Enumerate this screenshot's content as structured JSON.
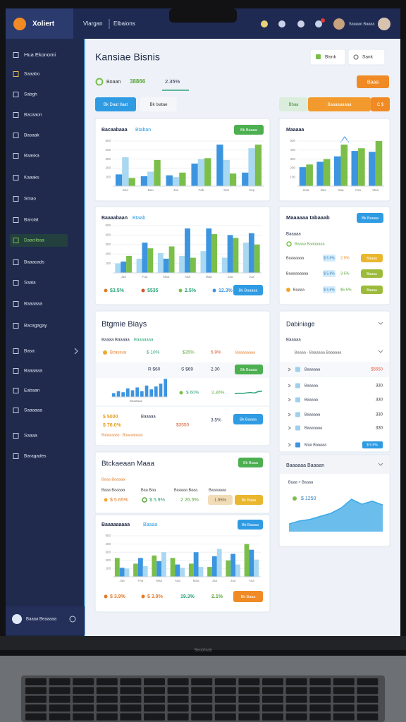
{
  "topbar": {
    "brand": "Xoliert",
    "nav": [
      "Vlargan",
      "Elbaions"
    ],
    "user": "Saaaao Baaaa"
  },
  "sidebar": {
    "items": [
      "Hua Ekonomi",
      "Saaabo",
      "Sabgh",
      "Bacaaon",
      "Basaak",
      "Baaska",
      "Kaaaks",
      "Smao",
      "Barolat",
      "Daaciibaa",
      "Baaacads",
      "Saaia",
      "Baaaaaa",
      "Bacagagay",
      "Basa",
      "Baaaaaa",
      "Eabaan",
      "Saaaaaa",
      "Saaaa",
      "Baragades"
    ],
    "footer": "Baaaa Beaaaaa"
  },
  "header": {
    "title": "Kansiae Bisnis",
    "buttons": [
      "Bisnk",
      "Sank"
    ],
    "stat_label": "Boaan",
    "stat_value": "38866",
    "stat_change": "2.35%",
    "action": "Baaa"
  },
  "tabs": {
    "left": [
      "Bk Daat Ilaat",
      "Bk Ixatae"
    ],
    "right": [
      "Bbaa",
      "Baaaaaaaaa",
      "C $"
    ]
  },
  "revenue": {
    "title": "Bacaabaaa",
    "subtitle": "Btaban",
    "badge": "Bk Baaaa",
    "chart": {
      "type": "bar",
      "categories": [
        "Dao",
        "Bao",
        "Jan",
        "Fab",
        "Mar",
        "Sep"
      ],
      "ylim": [
        0,
        500
      ],
      "yticks": [
        100,
        200,
        300,
        400,
        500
      ],
      "series": [
        {
          "color": "#3d95e0",
          "values": [
            130,
            110,
            120,
            250,
            460,
            150
          ]
        },
        {
          "color": "#a8d8f2",
          "values": [
            320,
            160,
            100,
            300,
            290,
            420
          ]
        },
        {
          "color": "#7bbf4a",
          "values": [
            90,
            290,
            150,
            310,
            140,
            460
          ]
        }
      ]
    }
  },
  "market": {
    "title": "Maaaaa",
    "chart": {
      "type": "bar",
      "categories": [
        "Daa",
        "Bao",
        "Saa",
        "Faa",
        "Maa"
      ],
      "ylim": [
        0,
        500
      ],
      "yticks": [
        100,
        200,
        300,
        400,
        500
      ],
      "series": [
        {
          "color": "#3d95e0",
          "values": [
            210,
            270,
            330,
            390,
            380
          ]
        },
        {
          "color": "#7bbf4a",
          "values": [
            240,
            300,
            460,
            420,
            500
          ]
        }
      ]
    }
  },
  "growth": {
    "title": "Baaaabaan",
    "subtitle": "Btaab",
    "stats": [
      "$3.5%",
      "$535",
      "2.5%",
      "12.3%"
    ],
    "button": "Bk Baaaaa",
    "chart": {
      "type": "bar",
      "categories": [
        "Jaa",
        "Faa",
        "Maa",
        "Aaa",
        "Maa",
        "Jaa",
        "Jua"
      ],
      "ylim": [
        0,
        500
      ],
      "yticks": [
        100,
        200,
        300,
        400,
        500
      ],
      "series": [
        {
          "color": "#a8d8f2",
          "values": [
            100,
            150,
            210,
            180,
            230,
            160,
            320
          ]
        },
        {
          "color": "#3d95e0",
          "values": [
            120,
            320,
            150,
            470,
            470,
            400,
            420
          ]
        },
        {
          "color": "#7bbf4a",
          "values": [
            180,
            260,
            280,
            160,
            410,
            370,
            300
          ]
        }
      ]
    }
  },
  "macro": {
    "title": "Maaaaaa tabaaab",
    "badge": "Bk Baaaa",
    "label": "Baaaaa",
    "sublabel": "Baaaa Baaaaaaa",
    "rows": [
      [
        "Baaaaaaa",
        "$ 5.9%",
        "2.5%",
        "Baaaa"
      ],
      [
        "Baaaaaaaaa",
        "$ 5.9%",
        "3.5%",
        "Baaaa"
      ],
      [
        "Baaaa",
        "$ 5.5%",
        "$5.5%",
        "Baaaa"
      ]
    ]
  },
  "strategy": {
    "title": "Btgmie Biays",
    "head": [
      "Baaaa Baaaaa",
      "Baaaaaaa"
    ],
    "row1": [
      "Bcassua",
      "$ 10%",
      "$35%",
      "5.9%",
      "Baaaaaaaa"
    ],
    "row2": [
      "R $60",
      "S $69",
      "2.30",
      "Bk Baaaa"
    ],
    "row3": [
      "$ 60%",
      "2.30%"
    ],
    "row4": [
      "$ 5000",
      "$ 76.0%",
      "Baaaaa",
      "$3550",
      "3.5%",
      "Bk Baaaa"
    ],
    "caption": "Baaaaaa",
    "footer": "Baaaaaaaa · Baaaaaaaaa",
    "bars": {
      "type": "bar",
      "ylim": [
        0,
        100
      ],
      "color": "#3d95e0",
      "values": [
        20,
        30,
        25,
        45,
        35,
        50,
        30,
        60,
        40,
        55,
        70,
        95
      ]
    },
    "spark": {
      "type": "line",
      "ylim": [
        0,
        100
      ],
      "color": "#2ba37a",
      "values": [
        30,
        35,
        32,
        40,
        45,
        38,
        55,
        60
      ]
    }
  },
  "dashboard": {
    "title": "Dabiniage",
    "label": "Baaaaa",
    "sublabel": "Baaaa · Baaaaaa Baaaaaa",
    "rows": [
      [
        "Baaaaaa",
        "$5550"
      ],
      [
        "Baaaaa",
        "330"
      ],
      [
        "Baaaaa",
        "330"
      ],
      [
        "Baaaaaa",
        "330"
      ],
      [
        "Baaaaaaa",
        "330"
      ],
      [
        "Maa Baaaaa",
        "$ 5.5%"
      ]
    ]
  },
  "stock": {
    "title": "Btckaeaan Maaa",
    "badge": "Bk Baaa",
    "label": "Baaa Baaaaa",
    "heads": [
      "Baaa Baaaaa",
      "Baa Baa",
      "Baaaaa Baaa",
      "Baaaaaaa"
    ],
    "values": [
      "$ 5.65%",
      "$ 5.9%",
      "2 26.5%",
      "1.95%",
      "Bk Baaa"
    ]
  },
  "forecast": {
    "title": "Baaaaaaaaa",
    "subtitle": "Baaaa",
    "badge": "Bk Baaaa",
    "stats": [
      "$ 3.9%",
      "$ 3.9%",
      "19.3%",
      "2.1%"
    ],
    "button": "Bk Baaa",
    "chart": {
      "type": "bar",
      "categories": [
        "Jaa",
        "Faa",
        "Maa",
        "Aaa",
        "Maa",
        "Jaa",
        "Jua",
        "Aua"
      ],
      "ylim": [
        0,
        500
      ],
      "yticks": [
        100,
        200,
        300,
        400,
        500
      ],
      "series": [
        {
          "color": "#7bbf4a",
          "values": [
            230,
            160,
            260,
            230,
            160,
            120,
            200,
            400
          ]
        },
        {
          "color": "#3d95e0",
          "values": [
            110,
            230,
            190,
            150,
            300,
            250,
            280,
            330
          ]
        },
        {
          "color": "#a8d8f2",
          "values": [
            100,
            130,
            300,
            110,
            120,
            340,
            150,
            210
          ]
        }
      ]
    }
  },
  "trend": {
    "title": "Baaaaaa Baaaan",
    "label": "Baaa + Baaaa",
    "value": "$ 1250",
    "chart": {
      "type": "area",
      "ylim": [
        0,
        100
      ],
      "color": "#3aa7e6",
      "values": [
        20,
        28,
        32,
        40,
        48,
        62,
        85,
        72,
        80,
        70
      ]
    }
  },
  "laptop": {
    "brand": "Seobhiab"
  }
}
